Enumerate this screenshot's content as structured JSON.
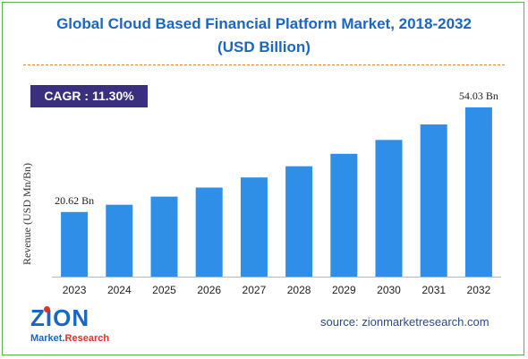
{
  "title_line1": "Global Cloud Based Financial Platform Market, 2018-2032",
  "title_line2": "(USD Billion)",
  "cagr_label": "CAGR : 11.30%",
  "source": "source: zionmarketresearch.com",
  "logo": {
    "main": "ZION",
    "sub_part1": "Market.",
    "sub_part2": "Research"
  },
  "colors": {
    "bar": "#2f8fe8",
    "title": "#1a66c2",
    "cagr_bg": "#3a2f7f",
    "border": "#5fb14a"
  },
  "chart_data": {
    "type": "bar",
    "title": "Global Cloud Based Financial Platform Market, 2018-2032 (USD Billion)",
    "categories": [
      "2023",
      "2024",
      "2025",
      "2026",
      "2027",
      "2028",
      "2029",
      "2030",
      "2031",
      "2032"
    ],
    "values": [
      20.62,
      22.95,
      25.55,
      28.43,
      31.65,
      35.22,
      39.2,
      43.64,
      48.57,
      54.03
    ],
    "data_labels": [
      {
        "index": 0,
        "text": "20.62 Bn"
      },
      {
        "index": 9,
        "text": "54.03 Bn"
      }
    ],
    "xlabel": "",
    "ylabel": "Revenue (USD Mn/Bn)",
    "ylim": [
      0,
      60
    ],
    "grid": false,
    "legend": "none"
  }
}
